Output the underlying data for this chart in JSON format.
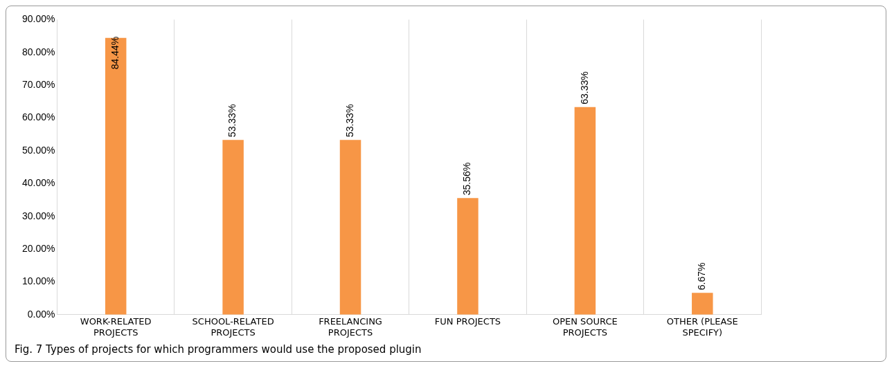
{
  "chart_data": {
    "type": "bar",
    "title": "Fig. 7 Types of projects for which programmers would use the proposed plugin",
    "categories": [
      "WORK-RELATED PROJECTS",
      "SCHOOL-RELATED PROJECTS",
      "FREELANCING PROJECTS",
      "FUN PROJECTS",
      "OPEN SOURCE PROJECTS",
      "OTHER (PLEASE SPECIFY)"
    ],
    "values": [
      84.44,
      53.33,
      53.33,
      35.56,
      63.33,
      6.67
    ],
    "value_labels": [
      "84.44%",
      "53.33%",
      "53.33%",
      "35.56%",
      "63.33%",
      "6.67%"
    ],
    "color": "#f79646",
    "ylim": [
      0,
      90
    ],
    "yticks": [
      {
        "value": 0,
        "label": "0.00%"
      },
      {
        "value": 10,
        "label": "10.00%"
      },
      {
        "value": 20,
        "label": "20.00%"
      },
      {
        "value": 30,
        "label": "30.00%"
      },
      {
        "value": 40,
        "label": "40.00%"
      },
      {
        "value": 50,
        "label": "50.00%"
      },
      {
        "value": 60,
        "label": "60.00%"
      },
      {
        "value": 70,
        "label": "70.00%"
      },
      {
        "value": 80,
        "label": "80.00%"
      },
      {
        "value": 90,
        "label": "90.00%"
      }
    ],
    "grid": "x",
    "legend": false
  }
}
